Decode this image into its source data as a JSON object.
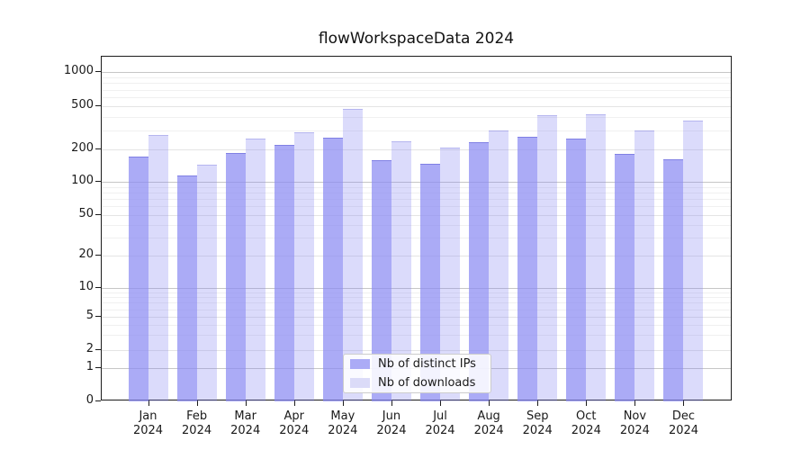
{
  "title": "flowWorkspaceData 2024",
  "chart_data": {
    "type": "bar",
    "title": "flowWorkspaceData 2024",
    "x_tick_months": [
      "Jan",
      "Feb",
      "Mar",
      "Apr",
      "May",
      "Jun",
      "Jul",
      "Aug",
      "Sep",
      "Oct",
      "Nov",
      "Dec"
    ],
    "x_tick_year": "2024",
    "y_ticks": [
      0,
      1,
      2,
      5,
      10,
      20,
      50,
      100,
      200,
      500,
      1000
    ],
    "y_scale": "symlog",
    "ylim": [
      0,
      1500
    ],
    "grid": "both",
    "legend_position": "lower-center",
    "series": [
      {
        "name": "Nb of distinct IPs",
        "color": "#ababf6",
        "base_color": "#8a8af2",
        "alpha": 0.72,
        "values": [
          170,
          114,
          185,
          222,
          255,
          158,
          148,
          235,
          262,
          250,
          181,
          163
        ]
      },
      {
        "name": "Nb of downloads",
        "color": "#dbdbf8",
        "base_color": "#8a8af2",
        "alpha": 0.31,
        "values": [
          270,
          145,
          253,
          287,
          475,
          236,
          206,
          300,
          413,
          425,
          300,
          365
        ]
      }
    ]
  }
}
